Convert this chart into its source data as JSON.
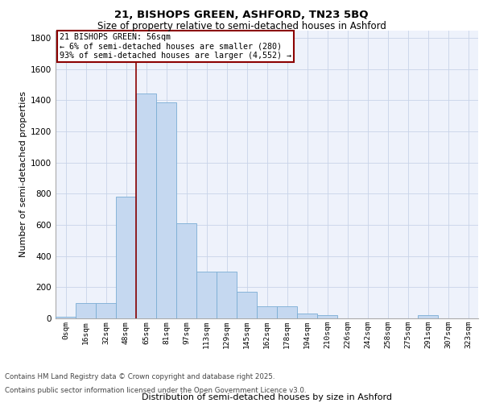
{
  "title1": "21, BISHOPS GREEN, ASHFORD, TN23 5BQ",
  "title2": "Size of property relative to semi-detached houses in Ashford",
  "xlabel": "Distribution of semi-detached houses by size in Ashford",
  "ylabel": "Number of semi-detached properties",
  "categories": [
    "0sqm",
    "16sqm",
    "32sqm",
    "48sqm",
    "65sqm",
    "81sqm",
    "97sqm",
    "113sqm",
    "129sqm",
    "145sqm",
    "162sqm",
    "178sqm",
    "194sqm",
    "210sqm",
    "226sqm",
    "242sqm",
    "258sqm",
    "275sqm",
    "291sqm",
    "307sqm",
    "323sqm"
  ],
  "values": [
    10,
    100,
    100,
    780,
    1445,
    1385,
    610,
    300,
    300,
    170,
    80,
    80,
    30,
    20,
    0,
    0,
    0,
    0,
    20,
    0,
    0
  ],
  "bar_color": "#c5d8f0",
  "bar_edge_color": "#7aadd4",
  "property_line_label": "21 BISHOPS GREEN: 56sqm",
  "annotation_line1": "← 6% of semi-detached houses are smaller (280)",
  "annotation_line2": "93% of semi-detached houses are larger (4,552) →",
  "vline_color": "#8b0000",
  "annotation_box_edge": "#8b0000",
  "ylim": [
    0,
    1850
  ],
  "yticks": [
    0,
    200,
    400,
    600,
    800,
    1000,
    1200,
    1400,
    1600,
    1800
  ],
  "footer1": "Contains HM Land Registry data © Crown copyright and database right 2025.",
  "footer2": "Contains public sector information licensed under the Open Government Licence v3.0.",
  "bg_color": "#eef2fb",
  "grid_color": "#c8d4e8"
}
